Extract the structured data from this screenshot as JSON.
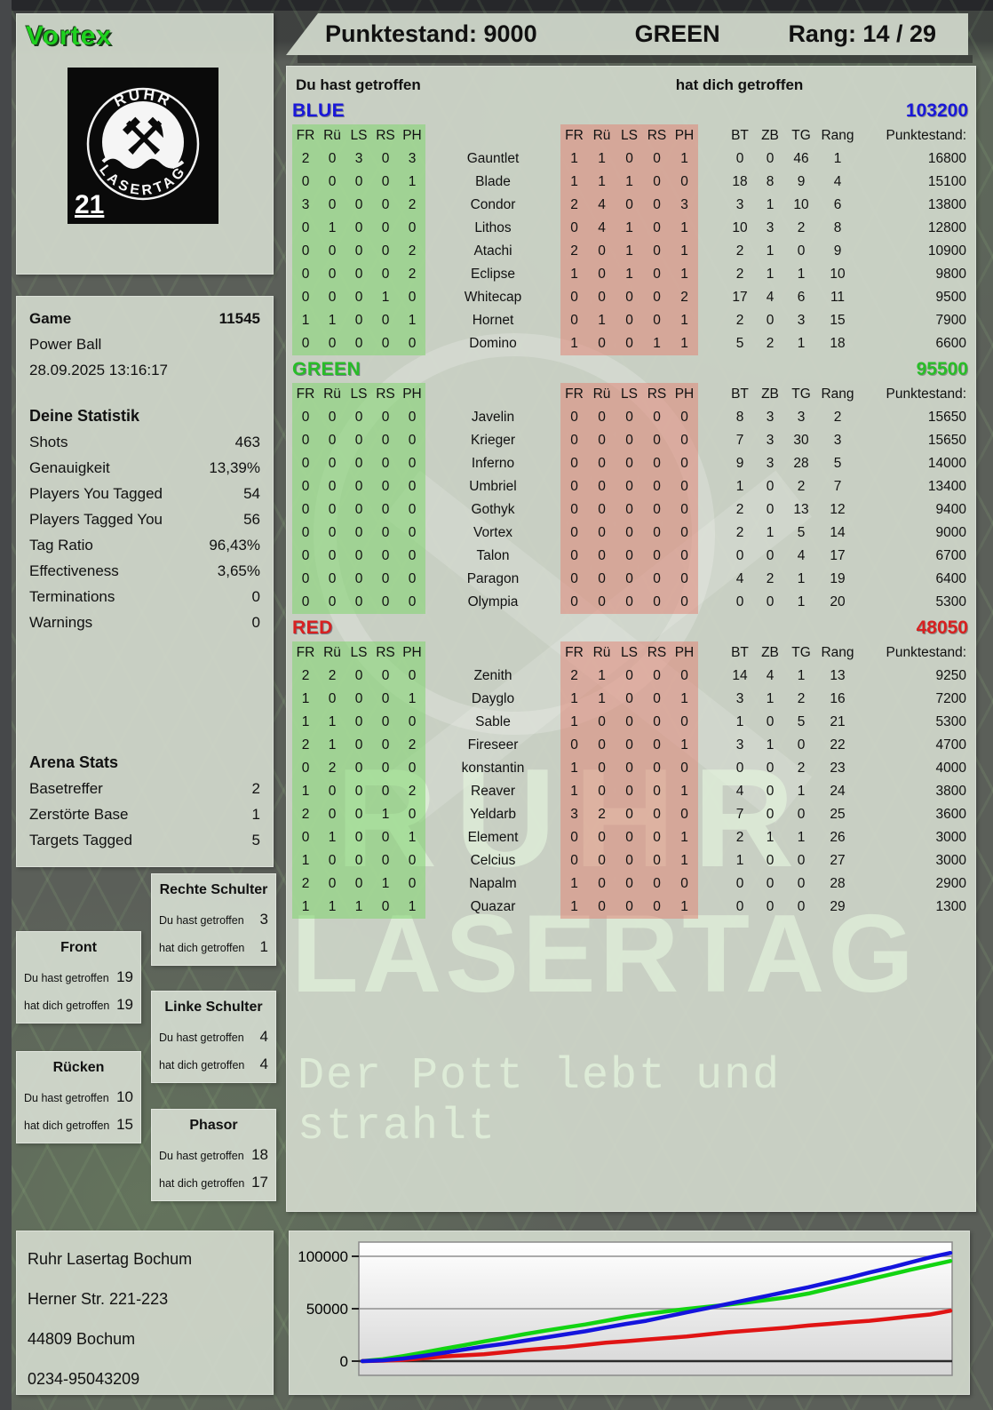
{
  "header": {
    "player_name": "Vortex",
    "points_label": "Punktestand: 9000",
    "team_label": "GREEN",
    "rank_label": "Rang: 14 / 29"
  },
  "logo": {
    "arc_top": "RUHR",
    "arc_bottom": "LASERTAG",
    "badge": "21"
  },
  "game": {
    "label": "Game",
    "number": "11545",
    "mode": "Power Ball",
    "datetime": "28.09.2025 13:16:17"
  },
  "stats": {
    "title": "Deine Statistik",
    "rows": [
      {
        "label": "Shots",
        "value": "463"
      },
      {
        "label": "Genauigkeit",
        "value": "13,39%"
      },
      {
        "label": "Players You Tagged",
        "value": "54"
      },
      {
        "label": "Players Tagged You",
        "value": "56"
      },
      {
        "label": "Tag Ratio",
        "value": "96,43%"
      },
      {
        "label": "Effectiveness",
        "value": "3,65%"
      },
      {
        "label": "Terminations",
        "value": "0"
      },
      {
        "label": "Warnings",
        "value": "0"
      }
    ]
  },
  "arena": {
    "title": "Arena Stats",
    "rows": [
      {
        "label": "Basetreffer",
        "value": "2"
      },
      {
        "label": "Zerstörte Base",
        "value": "1"
      },
      {
        "label": "Targets Tagged",
        "value": "5"
      }
    ]
  },
  "hit_labels": {
    "you": "Du hast getroffen",
    "them": "hat dich getroffen"
  },
  "hit_boxes": [
    {
      "title": "Rechte Schulter",
      "you": "3",
      "them": "1"
    },
    {
      "title": "Front",
      "you": "19",
      "them": "19"
    },
    {
      "title": "Linke Schulter",
      "you": "4",
      "them": "4"
    },
    {
      "title": "Rücken",
      "you": "10",
      "them": "15"
    },
    {
      "title": "Phasor",
      "you": "18",
      "them": "17"
    }
  ],
  "table": {
    "you_header": "Du hast getroffen",
    "them_header": "hat dich getroffen",
    "hit_cols": [
      "FR",
      "Rü",
      "LS",
      "RS",
      "PH"
    ],
    "stat_cols": [
      "BT",
      "ZB",
      "TG",
      "Rang"
    ],
    "points_col": "Punktestand:",
    "teams": [
      {
        "name": "BLUE",
        "color": "#1a18d8",
        "score": "103200",
        "rows": [
          {
            "you": [
              2,
              0,
              3,
              0,
              3
            ],
            "name": "Gauntlet",
            "them": [
              1,
              1,
              0,
              0,
              1
            ],
            "bt": 0,
            "zb": 0,
            "tg": 46,
            "rang": 1,
            "points": "16800"
          },
          {
            "you": [
              0,
              0,
              0,
              0,
              1
            ],
            "name": "Blade",
            "them": [
              1,
              1,
              1,
              0,
              0
            ],
            "bt": 18,
            "zb": 8,
            "tg": 9,
            "rang": 4,
            "points": "15100"
          },
          {
            "you": [
              3,
              0,
              0,
              0,
              2
            ],
            "name": "Condor",
            "them": [
              2,
              4,
              0,
              0,
              3
            ],
            "bt": 3,
            "zb": 1,
            "tg": 10,
            "rang": 6,
            "points": "13800"
          },
          {
            "you": [
              0,
              1,
              0,
              0,
              0
            ],
            "name": "Lithos",
            "them": [
              0,
              4,
              1,
              0,
              1
            ],
            "bt": 10,
            "zb": 3,
            "tg": 2,
            "rang": 8,
            "points": "12800"
          },
          {
            "you": [
              0,
              0,
              0,
              0,
              2
            ],
            "name": "Atachi",
            "them": [
              2,
              0,
              1,
              0,
              1
            ],
            "bt": 2,
            "zb": 1,
            "tg": 0,
            "rang": 9,
            "points": "10900"
          },
          {
            "you": [
              0,
              0,
              0,
              0,
              2
            ],
            "name": "Eclipse",
            "them": [
              1,
              0,
              1,
              0,
              1
            ],
            "bt": 2,
            "zb": 1,
            "tg": 1,
            "rang": 10,
            "points": "9800"
          },
          {
            "you": [
              0,
              0,
              0,
              1,
              0
            ],
            "name": "Whitecap",
            "them": [
              0,
              0,
              0,
              0,
              2
            ],
            "bt": 17,
            "zb": 4,
            "tg": 6,
            "rang": 11,
            "points": "9500"
          },
          {
            "you": [
              1,
              1,
              0,
              0,
              1
            ],
            "name": "Hornet",
            "them": [
              0,
              1,
              0,
              0,
              1
            ],
            "bt": 2,
            "zb": 0,
            "tg": 3,
            "rang": 15,
            "points": "7900"
          },
          {
            "you": [
              0,
              0,
              0,
              0,
              0
            ],
            "name": "Domino",
            "them": [
              1,
              0,
              0,
              1,
              1
            ],
            "bt": 5,
            "zb": 2,
            "tg": 1,
            "rang": 18,
            "points": "6600"
          }
        ]
      },
      {
        "name": "GREEN",
        "color": "#28bd28",
        "score": "95500",
        "rows": [
          {
            "you": [
              0,
              0,
              0,
              0,
              0
            ],
            "name": "Javelin",
            "them": [
              0,
              0,
              0,
              0,
              0
            ],
            "bt": 8,
            "zb": 3,
            "tg": 3,
            "rang": 2,
            "points": "15650"
          },
          {
            "you": [
              0,
              0,
              0,
              0,
              0
            ],
            "name": "Krieger",
            "them": [
              0,
              0,
              0,
              0,
              0
            ],
            "bt": 7,
            "zb": 3,
            "tg": 30,
            "rang": 3,
            "points": "15650"
          },
          {
            "you": [
              0,
              0,
              0,
              0,
              0
            ],
            "name": "Inferno",
            "them": [
              0,
              0,
              0,
              0,
              0
            ],
            "bt": 9,
            "zb": 3,
            "tg": 28,
            "rang": 5,
            "points": "14000"
          },
          {
            "you": [
              0,
              0,
              0,
              0,
              0
            ],
            "name": "Umbriel",
            "them": [
              0,
              0,
              0,
              0,
              0
            ],
            "bt": 1,
            "zb": 0,
            "tg": 2,
            "rang": 7,
            "points": "13400"
          },
          {
            "you": [
              0,
              0,
              0,
              0,
              0
            ],
            "name": "Gothyk",
            "them": [
              0,
              0,
              0,
              0,
              0
            ],
            "bt": 2,
            "zb": 0,
            "tg": 13,
            "rang": 12,
            "points": "9400"
          },
          {
            "you": [
              0,
              0,
              0,
              0,
              0
            ],
            "name": "Vortex",
            "them": [
              0,
              0,
              0,
              0,
              0
            ],
            "bt": 2,
            "zb": 1,
            "tg": 5,
            "rang": 14,
            "points": "9000"
          },
          {
            "you": [
              0,
              0,
              0,
              0,
              0
            ],
            "name": "Talon",
            "them": [
              0,
              0,
              0,
              0,
              0
            ],
            "bt": 0,
            "zb": 0,
            "tg": 4,
            "rang": 17,
            "points": "6700"
          },
          {
            "you": [
              0,
              0,
              0,
              0,
              0
            ],
            "name": "Paragon",
            "them": [
              0,
              0,
              0,
              0,
              0
            ],
            "bt": 4,
            "zb": 2,
            "tg": 1,
            "rang": 19,
            "points": "6400"
          },
          {
            "you": [
              0,
              0,
              0,
              0,
              0
            ],
            "name": "Olympia",
            "them": [
              0,
              0,
              0,
              0,
              0
            ],
            "bt": 0,
            "zb": 0,
            "tg": 1,
            "rang": 20,
            "points": "5300"
          }
        ]
      },
      {
        "name": "RED",
        "color": "#d82020",
        "score": "48050",
        "rows": [
          {
            "you": [
              2,
              2,
              0,
              0,
              0
            ],
            "name": "Zenith",
            "them": [
              2,
              1,
              0,
              0,
              0
            ],
            "bt": 14,
            "zb": 4,
            "tg": 1,
            "rang": 13,
            "points": "9250"
          },
          {
            "you": [
              1,
              0,
              0,
              0,
              1
            ],
            "name": "Dayglo",
            "them": [
              1,
              1,
              0,
              0,
              1
            ],
            "bt": 3,
            "zb": 1,
            "tg": 2,
            "rang": 16,
            "points": "7200"
          },
          {
            "you": [
              1,
              1,
              0,
              0,
              0
            ],
            "name": "Sable",
            "them": [
              1,
              0,
              0,
              0,
              0
            ],
            "bt": 1,
            "zb": 0,
            "tg": 5,
            "rang": 21,
            "points": "5300"
          },
          {
            "you": [
              2,
              1,
              0,
              0,
              2
            ],
            "name": "Fireseer",
            "them": [
              0,
              0,
              0,
              0,
              1
            ],
            "bt": 3,
            "zb": 1,
            "tg": 0,
            "rang": 22,
            "points": "4700"
          },
          {
            "you": [
              0,
              2,
              0,
              0,
              0
            ],
            "name": "konstantin",
            "them": [
              1,
              0,
              0,
              0,
              0
            ],
            "bt": 0,
            "zb": 0,
            "tg": 2,
            "rang": 23,
            "points": "4000"
          },
          {
            "you": [
              1,
              0,
              0,
              0,
              2
            ],
            "name": "Reaver",
            "them": [
              1,
              0,
              0,
              0,
              1
            ],
            "bt": 4,
            "zb": 0,
            "tg": 1,
            "rang": 24,
            "points": "3800"
          },
          {
            "you": [
              2,
              0,
              0,
              1,
              0
            ],
            "name": "Yeldarb",
            "them": [
              3,
              2,
              0,
              0,
              0
            ],
            "bt": 7,
            "zb": 0,
            "tg": 0,
            "rang": 25,
            "points": "3600"
          },
          {
            "you": [
              0,
              1,
              0,
              0,
              1
            ],
            "name": "Element",
            "them": [
              0,
              0,
              0,
              0,
              1
            ],
            "bt": 2,
            "zb": 1,
            "tg": 1,
            "rang": 26,
            "points": "3000"
          },
          {
            "you": [
              1,
              0,
              0,
              0,
              0
            ],
            "name": "Celcius",
            "them": [
              0,
              0,
              0,
              0,
              1
            ],
            "bt": 1,
            "zb": 0,
            "tg": 0,
            "rang": 27,
            "points": "3000"
          },
          {
            "you": [
              2,
              0,
              0,
              1,
              0
            ],
            "name": "Napalm",
            "them": [
              1,
              0,
              0,
              0,
              0
            ],
            "bt": 0,
            "zb": 0,
            "tg": 0,
            "rang": 28,
            "points": "2900"
          },
          {
            "you": [
              1,
              1,
              1,
              0,
              1
            ],
            "name": "Quazar",
            "them": [
              1,
              0,
              0,
              0,
              1
            ],
            "bt": 0,
            "zb": 0,
            "tg": 0,
            "rang": 29,
            "points": "1300"
          }
        ]
      }
    ]
  },
  "watermark": {
    "line1": "RUHR",
    "line2": "LASERTAG",
    "line3": "Der Pott lebt und strahlt"
  },
  "address": {
    "lines": [
      "Ruhr Lasertag Bochum",
      "Herner Str. 221-223",
      "44809 Bochum",
      "0234-95043209"
    ]
  },
  "chart_data": {
    "type": "line",
    "title": "",
    "xlabel": "",
    "ylabel": "",
    "y_ticks": [
      0,
      50000,
      100000
    ],
    "y_range": [
      0,
      112000
    ],
    "grid": true,
    "legend": "none",
    "series": [
      {
        "name": "BLUE",
        "color": "#1414dd",
        "values": [
          0,
          800,
          2500,
          5000,
          8000,
          11000,
          14000,
          16500,
          19500,
          22500,
          25500,
          28500,
          32000,
          35500,
          38500,
          42500,
          46500,
          50500,
          54500,
          58500,
          62500,
          66500,
          70500,
          75000,
          79500,
          84500,
          89000,
          94000,
          99000,
          103200
        ]
      },
      {
        "name": "GREEN",
        "color": "#12d412",
        "values": [
          0,
          1800,
          4800,
          8200,
          11800,
          15200,
          18800,
          22200,
          25800,
          29000,
          32000,
          35000,
          38500,
          42000,
          45000,
          47500,
          49800,
          51800,
          53800,
          56000,
          58500,
          61000,
          64500,
          69000,
          73500,
          78000,
          82500,
          87000,
          91300,
          95500
        ]
      },
      {
        "name": "RED",
        "color": "#e01414",
        "values": [
          0,
          400,
          1200,
          2800,
          4500,
          5500,
          6500,
          8500,
          10500,
          12000,
          13500,
          15500,
          17500,
          19000,
          20500,
          22000,
          23500,
          25500,
          27500,
          29000,
          30500,
          32000,
          34000,
          35500,
          37000,
          38500,
          40500,
          42500,
          44500,
          48050
        ]
      }
    ]
  }
}
